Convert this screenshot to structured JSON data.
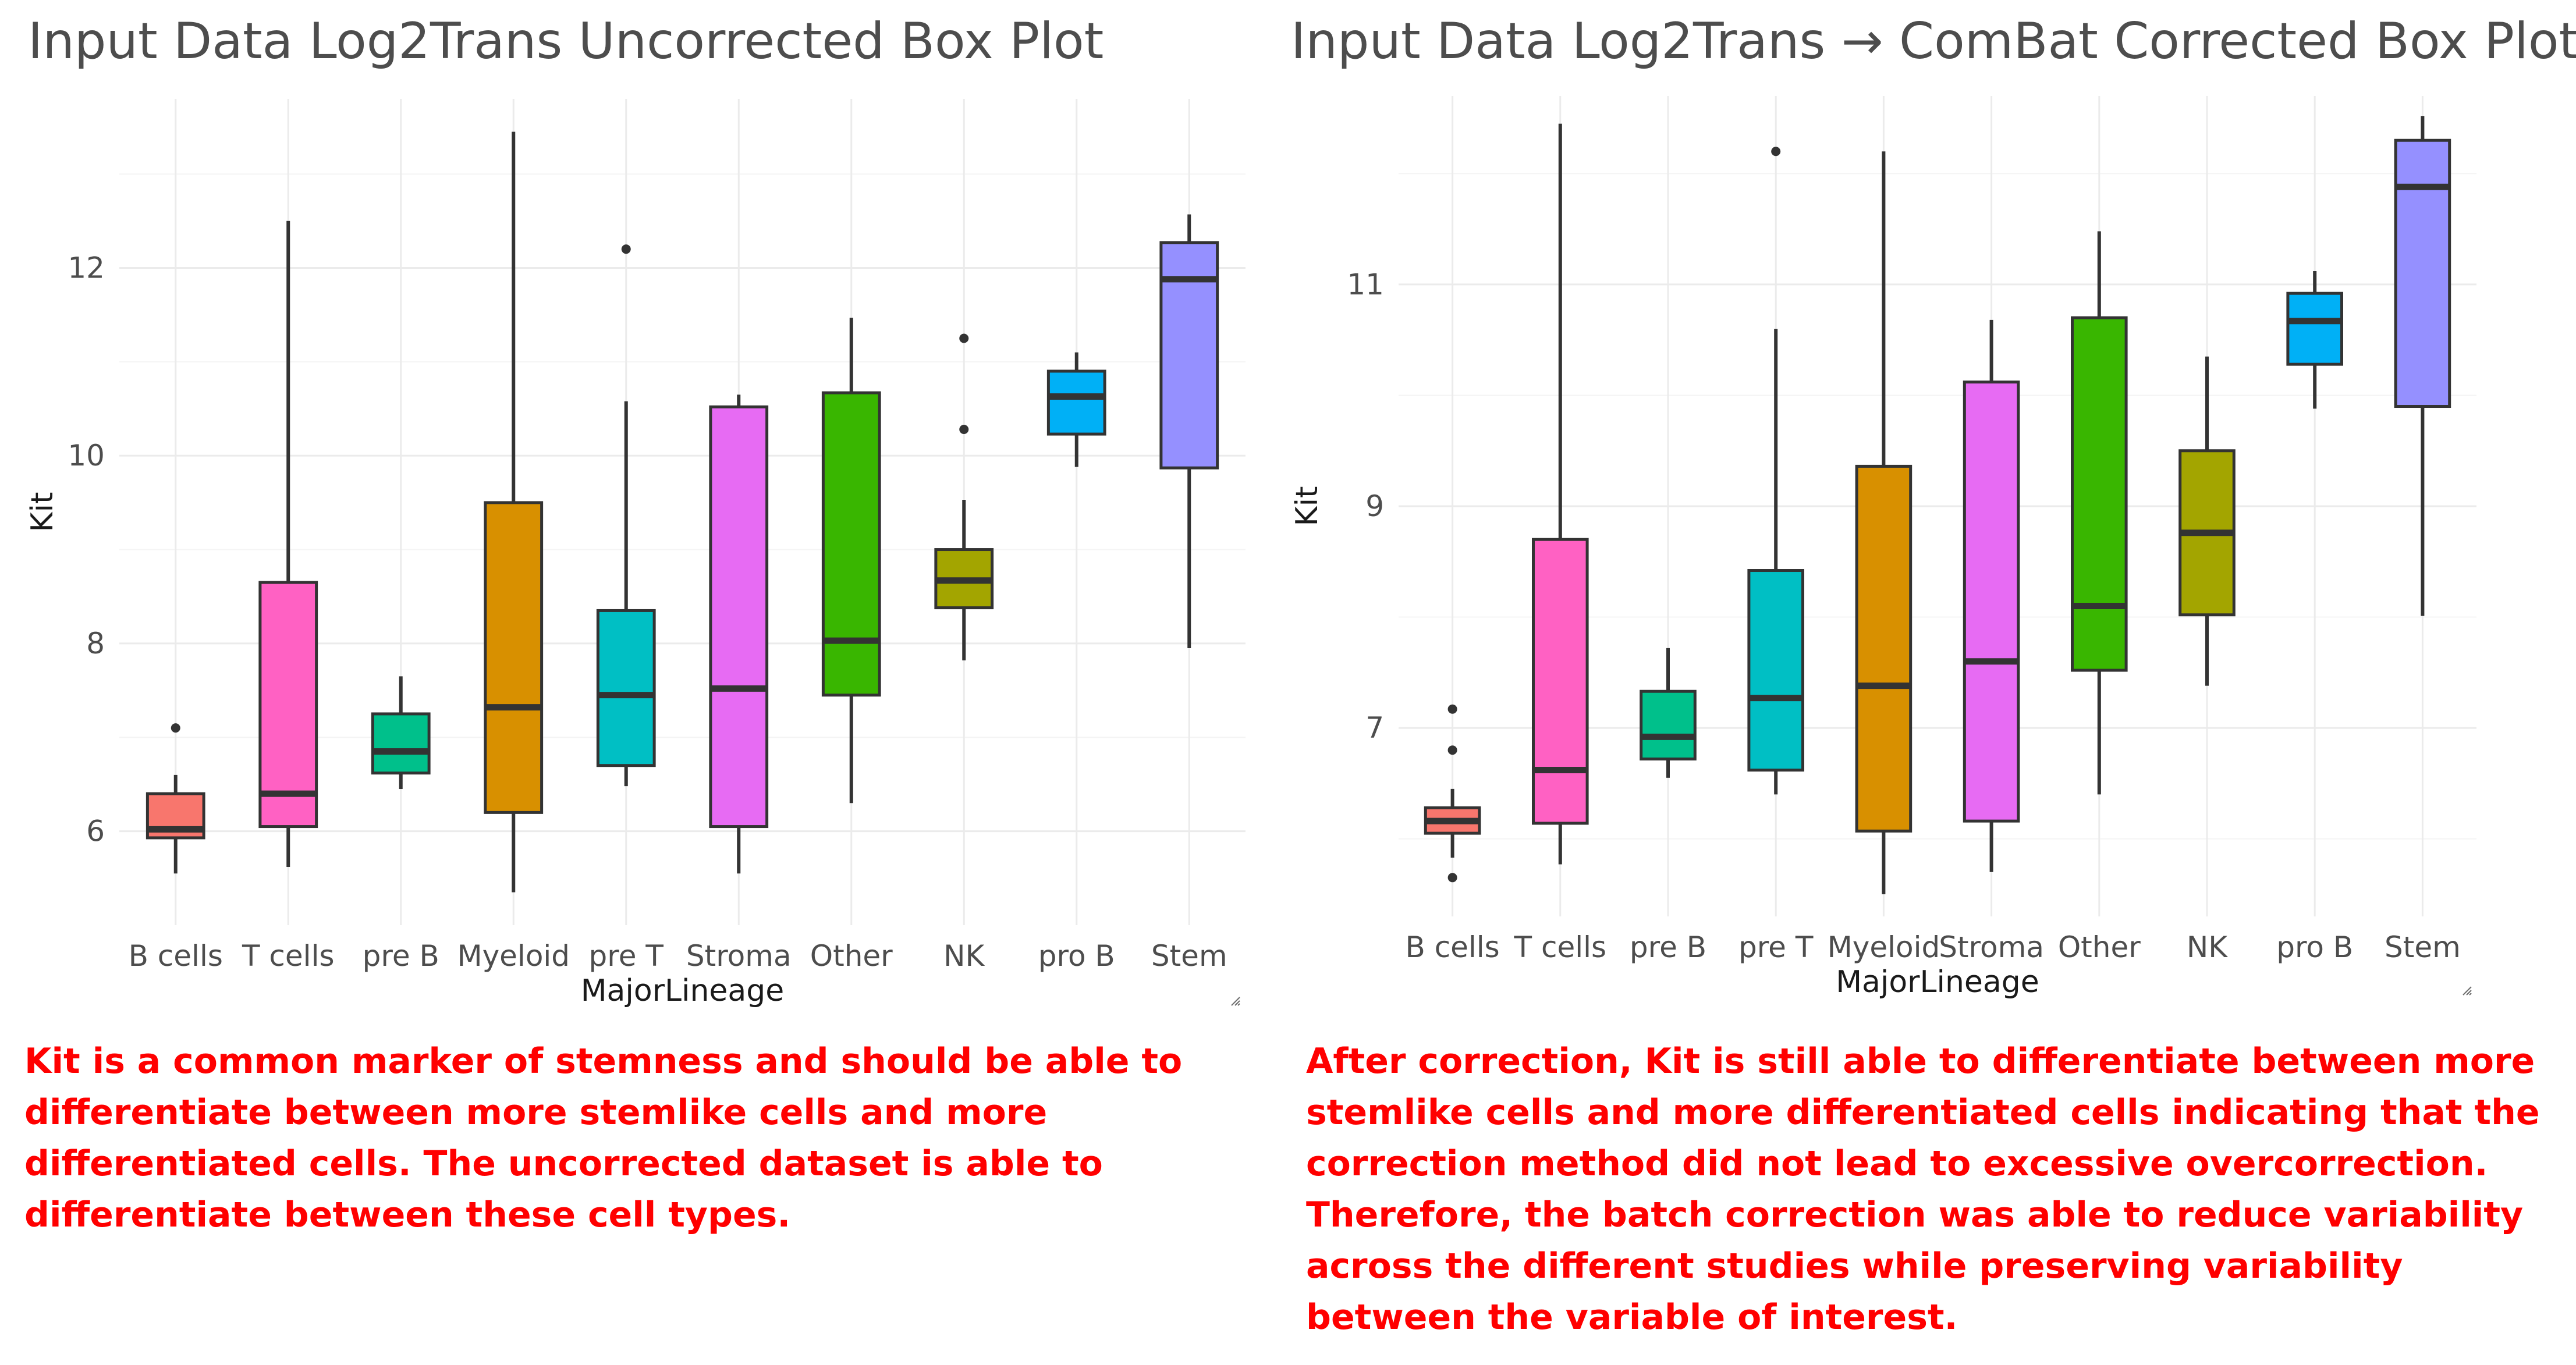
{
  "chart_data": [
    {
      "type": "box",
      "title": "Input Data Log2Trans Uncorrected Box Plot",
      "xlabel": "MajorLineage",
      "ylabel": "Kit",
      "ylim": [
        5.0,
        13.8
      ],
      "yticks": [
        6,
        8,
        10,
        12
      ],
      "grid": true,
      "colors": {
        "B cells": "#F8766D",
        "T cells": "#FF61C3",
        "pre B": "#00C08B",
        "Myeloid": "#D89000",
        "pre T": "#00BFC4",
        "Stroma": "#E76BF3",
        "Other": "#39B600",
        "NK": "#A3A500",
        "pro B": "#00B0F6",
        "Stem": "#9590FF"
      },
      "categories": [
        "B cells",
        "T cells",
        "pre B",
        "Myeloid",
        "pre T",
        "Stroma",
        "Other",
        "NK",
        "pro B",
        "Stem"
      ],
      "boxes": [
        {
          "category": "B cells",
          "whisker_low": 5.55,
          "q1": 5.93,
          "median": 6.02,
          "q3": 6.4,
          "whisker_high": 6.6,
          "outliers": [
            7.1
          ]
        },
        {
          "category": "T cells",
          "whisker_low": 5.62,
          "q1": 6.05,
          "median": 6.4,
          "q3": 8.65,
          "whisker_high": 12.5,
          "outliers": []
        },
        {
          "category": "pre B",
          "whisker_low": 6.45,
          "q1": 6.62,
          "median": 6.85,
          "q3": 7.25,
          "whisker_high": 7.65,
          "outliers": []
        },
        {
          "category": "Myeloid",
          "whisker_low": 5.35,
          "q1": 6.2,
          "median": 7.32,
          "q3": 9.5,
          "whisker_high": 13.45,
          "outliers": []
        },
        {
          "category": "pre T",
          "whisker_low": 6.48,
          "q1": 6.7,
          "median": 7.45,
          "q3": 8.35,
          "whisker_high": 10.58,
          "outliers": [
            12.2
          ]
        },
        {
          "category": "Stroma",
          "whisker_low": 5.55,
          "q1": 6.05,
          "median": 7.52,
          "q3": 10.52,
          "whisker_high": 10.65,
          "outliers": []
        },
        {
          "category": "Other",
          "whisker_low": 6.3,
          "q1": 7.45,
          "median": 8.03,
          "q3": 10.67,
          "whisker_high": 11.47,
          "outliers": []
        },
        {
          "category": "NK",
          "whisker_low": 7.82,
          "q1": 8.38,
          "median": 8.67,
          "q3": 9.0,
          "whisker_high": 9.53,
          "outliers": [
            10.28,
            11.25
          ]
        },
        {
          "category": "pro B",
          "whisker_low": 9.88,
          "q1": 10.23,
          "median": 10.63,
          "q3": 10.9,
          "whisker_high": 11.1,
          "outliers": []
        },
        {
          "category": "Stem",
          "whisker_low": 7.95,
          "q1": 9.87,
          "median": 11.88,
          "q3": 12.27,
          "whisker_high": 12.57,
          "outliers": []
        }
      ],
      "caption": "Kit is a common marker of stemness and should be able to differentiate between more stemlike cells and more differentiated cells. The uncorrected dataset is able to differentiate between these cell types."
    },
    {
      "type": "box",
      "title": "Input Data Log2Trans → ComBat Corrected Box Plot",
      "xlabel": "MajorLineage",
      "ylabel": "Kit",
      "ylim": [
        5.3,
        12.7
      ],
      "yticks": [
        7,
        9,
        11
      ],
      "grid": true,
      "colors": {
        "B cells": "#F8766D",
        "T cells": "#FF61C3",
        "pre B": "#00C08B",
        "pre T": "#00BFC4",
        "Myeloid": "#D89000",
        "Stroma": "#E76BF3",
        "Other": "#39B600",
        "NK": "#A3A500",
        "pro B": "#00B0F6",
        "Stem": "#9590FF"
      },
      "categories": [
        "B cells",
        "T cells",
        "pre B",
        "pre T",
        "Myeloid",
        "Stroma",
        "Other",
        "NK",
        "pro B",
        "Stem"
      ],
      "boxes": [
        {
          "category": "B cells",
          "whisker_low": 5.83,
          "q1": 6.05,
          "median": 6.16,
          "q3": 6.28,
          "whisker_high": 6.45,
          "outliers": [
            5.65,
            6.8,
            7.17
          ]
        },
        {
          "category": "T cells",
          "whisker_low": 5.77,
          "q1": 6.14,
          "median": 6.62,
          "q3": 8.7,
          "whisker_high": 12.45,
          "outliers": []
        },
        {
          "category": "pre B",
          "whisker_low": 6.55,
          "q1": 6.72,
          "median": 6.92,
          "q3": 7.33,
          "whisker_high": 7.72,
          "outliers": []
        },
        {
          "category": "pre T",
          "whisker_low": 6.4,
          "q1": 6.62,
          "median": 7.27,
          "q3": 8.42,
          "whisker_high": 10.6,
          "outliers": [
            12.2
          ]
        },
        {
          "category": "Myeloid",
          "whisker_low": 5.5,
          "q1": 6.07,
          "median": 7.38,
          "q3": 9.36,
          "whisker_high": 12.2,
          "outliers": []
        },
        {
          "category": "Stroma",
          "whisker_low": 5.7,
          "q1": 6.16,
          "median": 7.6,
          "q3": 10.12,
          "whisker_high": 10.68,
          "outliers": []
        },
        {
          "category": "Other",
          "whisker_low": 6.4,
          "q1": 7.52,
          "median": 8.1,
          "q3": 10.7,
          "whisker_high": 11.48,
          "outliers": []
        },
        {
          "category": "NK",
          "whisker_low": 7.38,
          "q1": 8.02,
          "median": 8.76,
          "q3": 9.5,
          "whisker_high": 10.35,
          "outliers": []
        },
        {
          "category": "pro B",
          "whisker_low": 9.88,
          "q1": 10.28,
          "median": 10.67,
          "q3": 10.92,
          "whisker_high": 11.12,
          "outliers": []
        },
        {
          "category": "Stem",
          "whisker_low": 8.01,
          "q1": 9.9,
          "median": 11.88,
          "q3": 12.3,
          "whisker_high": 12.52,
          "outliers": []
        }
      ],
      "caption": "After correction, Kit is still able to differentiate between more stemlike cells and more differentiated cells indicating that the correction method did not lead to excessive overcorrection. Therefore, the batch correction was able to reduce variability across the different studies while preserving variability between the variable of interest."
    }
  ]
}
